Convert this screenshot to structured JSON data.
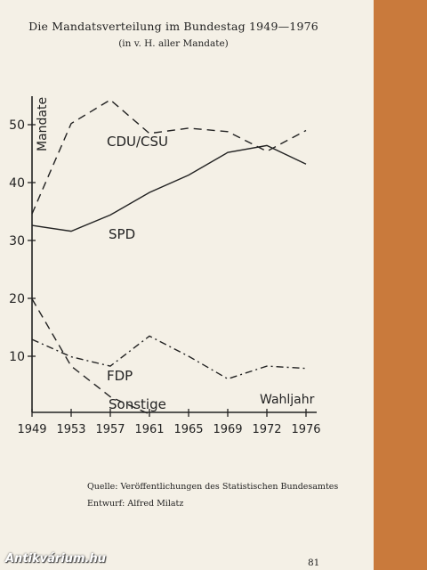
{
  "chart_data": {
    "type": "line",
    "title": "Die Mandatsverteilung im Bundestag 1949—1976",
    "subtitle": "(in v. H. aller Mandate)",
    "ylabel": "Mandate",
    "xlabel": "Wahljahr",
    "x": [
      1949,
      1953,
      1957,
      1961,
      1965,
      1969,
      1972,
      1976
    ],
    "y_ticks": [
      10,
      20,
      30,
      40,
      50
    ],
    "ylim": [
      0,
      55
    ],
    "grid": false,
    "series": [
      {
        "name": "CDU/CSU",
        "style": "dashed",
        "values": [
          34.6,
          50.2,
          54.3,
          48.5,
          49.4,
          48.8,
          45.4,
          49.0
        ]
      },
      {
        "name": "SPD",
        "style": "solid",
        "values": [
          32.6,
          31.6,
          34.4,
          38.3,
          41.3,
          45.2,
          46.4,
          43.2
        ]
      },
      {
        "name": "FDP",
        "style": "dash-dot",
        "values": [
          12.9,
          9.9,
          8.3,
          13.5,
          10.0,
          6.1,
          8.3,
          7.9
        ]
      },
      {
        "name": "Sonstige",
        "style": "dashed",
        "values": [
          19.9,
          8.3,
          3.0,
          0,
          0,
          0,
          0,
          0
        ]
      }
    ]
  },
  "notes": {
    "source": "Quelle: Veröffentlichungen des Statistischen Bundesamtes",
    "author": "Entwurf: Alfred Milatz"
  },
  "page_number": "81",
  "watermark": "Antikvárium.hu",
  "colors": {
    "ink": "#222222",
    "paper": "#f4f0e6",
    "strip": "#c97a3c"
  }
}
